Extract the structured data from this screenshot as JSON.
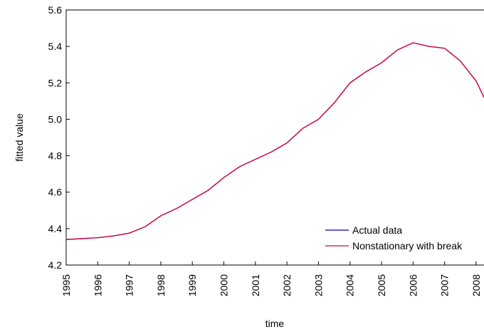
{
  "chart_data": {
    "type": "line",
    "x_label": "time",
    "y_label": "fitted value",
    "x": [
      1995,
      1995.5,
      1996,
      1996.5,
      1997,
      1997.5,
      1998,
      1998.5,
      1999,
      1999.5,
      2000,
      2000.5,
      2001,
      2001.5,
      2002,
      2002.5,
      2003,
      2003.5,
      2004,
      2004.5,
      2005,
      2005.5,
      2006,
      2006.5,
      2007,
      2007.5,
      2008,
      2008.25
    ],
    "series": [
      {
        "name": "Actual data",
        "color": "#0000cc",
        "values": [
          4.34,
          4.345,
          4.35,
          4.36,
          4.375,
          4.41,
          4.47,
          4.51,
          4.56,
          4.61,
          4.68,
          4.74,
          4.78,
          4.82,
          4.87,
          4.95,
          5.0,
          5.09,
          5.2,
          5.26,
          5.31,
          5.38,
          5.42,
          5.4,
          5.39,
          5.32,
          5.21,
          5.12
        ]
      },
      {
        "name": "Nonstationary with break",
        "color": "#dd0033",
        "values": [
          4.34,
          4.345,
          4.35,
          4.36,
          4.375,
          4.41,
          4.47,
          4.51,
          4.56,
          4.61,
          4.68,
          4.74,
          4.78,
          4.82,
          4.87,
          4.95,
          5.0,
          5.09,
          5.2,
          5.26,
          5.31,
          5.38,
          5.42,
          5.4,
          5.39,
          5.32,
          5.21,
          5.12
        ]
      }
    ],
    "xlim": [
      1995,
      2008.25
    ],
    "xticks": [
      1995,
      1996,
      1997,
      1998,
      1999,
      2000,
      2001,
      2002,
      2003,
      2004,
      2005,
      2006,
      2007,
      2008
    ],
    "ylim": [
      4.2,
      5.6
    ],
    "yticks": [
      {
        "value": 4.2,
        "label": "4.2"
      },
      {
        "value": 4.4,
        "label": "4.4"
      },
      {
        "value": 4.6,
        "label": "4.6"
      },
      {
        "value": 4.8,
        "label": "4.8"
      },
      {
        "value": 5.0,
        "label": "5.0"
      },
      {
        "value": 5.2,
        "label": "5.2"
      },
      {
        "value": 5.4,
        "label": "5.4"
      },
      {
        "value": 5.6,
        "label": "5.6"
      }
    ],
    "legend": "lower right"
  }
}
